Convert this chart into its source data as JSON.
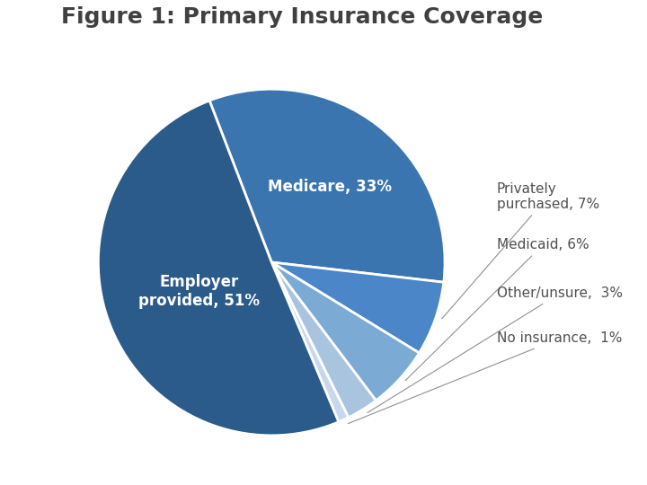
{
  "title": "Figure 1: Primary Insurance Coverage",
  "title_fontsize": 18,
  "title_fontweight": "bold",
  "title_color": "#404040",
  "slices": [
    {
      "label": "Medicare, 33%",
      "value": 33,
      "color": "#3B75AF",
      "text_color": "white",
      "fontweight": "bold",
      "fontsize": 12,
      "internal_label": true,
      "label_r": 0.55
    },
    {
      "label": "Privately\npurchased, 7%",
      "value": 7,
      "color": "#4A86C8",
      "text_color": "#505050",
      "fontweight": "normal",
      "fontsize": 11,
      "internal_label": false
    },
    {
      "label": "Medicaid, 6%",
      "value": 6,
      "color": "#7BAAD4",
      "text_color": "#505050",
      "fontweight": "normal",
      "fontsize": 11,
      "internal_label": false
    },
    {
      "label": "Other/unsure,  3%",
      "value": 3,
      "color": "#A8C4DF",
      "text_color": "#505050",
      "fontweight": "normal",
      "fontsize": 11,
      "internal_label": false
    },
    {
      "label": "No insurance,  1%",
      "value": 1,
      "color": "#C8D8EC",
      "text_color": "#505050",
      "fontweight": "normal",
      "fontsize": 11,
      "internal_label": false
    },
    {
      "label": "Employer\nprovided, 51%",
      "value": 51,
      "color": "#2B5B8A",
      "text_color": "white",
      "fontweight": "bold",
      "fontsize": 12,
      "internal_label": true,
      "label_r": 0.45
    }
  ],
  "wedge_linewidth": 2.0,
  "wedge_linecolor": "white",
  "startangle": 111,
  "background_color": "#ffffff",
  "figsize": [
    7.2,
    5.4
  ],
  "dpi": 100
}
